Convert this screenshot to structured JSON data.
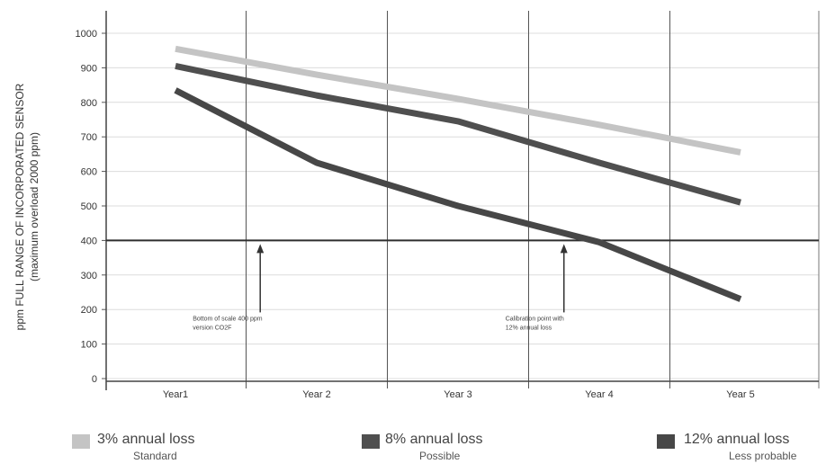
{
  "chart_data": {
    "type": "line",
    "title": "",
    "ylabel_line1": "ppm FULL RANGE OF INCORPORATED SENSOR",
    "ylabel_line2": "(maximum overload 2000 ppm)",
    "xlabel": "",
    "categories": [
      "Year1",
      "Year 2",
      "Year 3",
      "Year 4",
      "Year 5"
    ],
    "ylim": [
      0,
      1000
    ],
    "yticks": [
      0,
      100,
      200,
      300,
      400,
      500,
      600,
      700,
      800,
      900,
      1000
    ],
    "grid": true,
    "series": [
      {
        "name": "3% annual loss",
        "sublabel": "Standard",
        "color": "#c4c4c4",
        "values": [
          955,
          880,
          810,
          735,
          655
        ]
      },
      {
        "name": "8% annual loss",
        "sublabel": "Possible",
        "color": "#4f4f4f",
        "values": [
          905,
          820,
          745,
          625,
          510
        ]
      },
      {
        "name": "12% annual loss",
        "sublabel": "Less probable",
        "color": "#474747",
        "values": [
          835,
          625,
          500,
          395,
          230
        ]
      }
    ],
    "reference_line": {
      "value": 400
    },
    "annotations": [
      {
        "category_index": 0.6,
        "text_lines": [
          "Bottom of scale 400 ppm",
          "version CO2F"
        ]
      },
      {
        "category_index": 2.75,
        "text_lines": [
          "Calibration point with",
          "12% annual loss"
        ]
      }
    ]
  }
}
